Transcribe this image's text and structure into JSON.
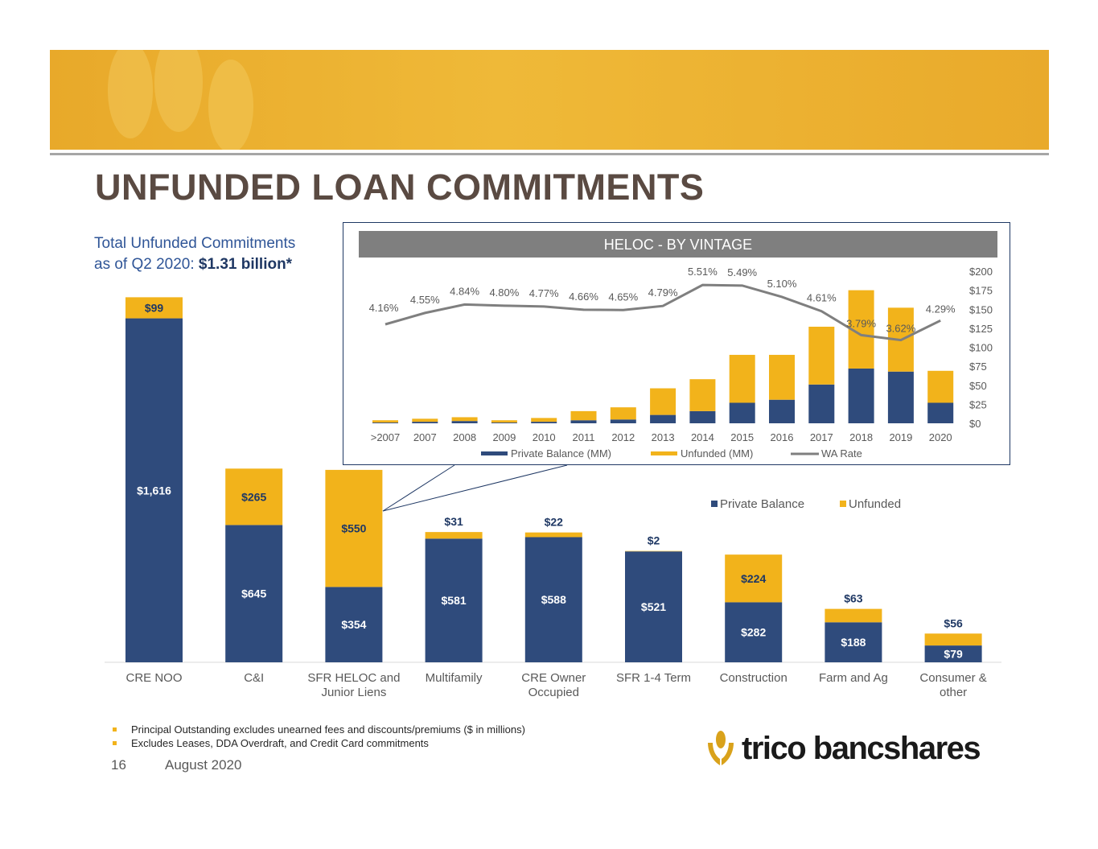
{
  "page": {
    "title": "UNFUNDED LOAN COMMITMENTS",
    "subtitle_line1": "Total Unfunded Commitments",
    "subtitle_line2_prefix": "as of Q2 2020: ",
    "subtitle_line2_value": "$1.31 billion*",
    "page_number": "16",
    "date": "August 2020",
    "logo_text": "trico bancshares",
    "footnotes": [
      "Principal Outstanding excludes unearned fees and discounts/premiums ($ in millions)",
      "Excludes Leases, DDA Overdraft, and Credit Card commitments"
    ]
  },
  "colors": {
    "navy": "#2f4b7c",
    "gold": "#f2b31b",
    "gray_line": "#7f7f7f",
    "banner": "#eab22f"
  },
  "chart_data": [
    {
      "type": "bar",
      "stacked": true,
      "categories": [
        "CRE NOO",
        "C&I",
        "SFR HELOC and Junior Liens",
        "Multifamily",
        "CRE Owner Occupied",
        "SFR 1-4 Term",
        "Construction",
        "Farm and Ag",
        "Consumer & other"
      ],
      "series": [
        {
          "name": "Private Balance",
          "values": [
            1616,
            645,
            354,
            581,
            588,
            521,
            282,
            188,
            79
          ],
          "labels": [
            "$1,616",
            "$645",
            "$354",
            "$581",
            "$588",
            "$521",
            "$282",
            "$188",
            "$79"
          ]
        },
        {
          "name": "Unfunded",
          "values": [
            99,
            265,
            550,
            31,
            22,
            2,
            224,
            63,
            56
          ],
          "labels": [
            "$99",
            "$265",
            "$550",
            "$31",
            "$22",
            "$2",
            "$224",
            "$63",
            "$56"
          ]
        }
      ],
      "legend": "right",
      "ylim": [
        0,
        1750
      ]
    },
    {
      "type": "bar",
      "stacked": true,
      "title": "HELOC - BY VINTAGE",
      "categories": [
        ">2007",
        "2007",
        "2008",
        "2009",
        "2010",
        "2011",
        "2012",
        "2013",
        "2014",
        "2015",
        "2016",
        "2017",
        "2018",
        "2019",
        "2020"
      ],
      "series": [
        {
          "name": "Private Balance (MM)",
          "values": [
            1,
            2,
            3,
            1,
            2,
            4,
            5,
            11,
            16,
            27,
            31,
            51,
            72,
            68,
            27
          ]
        },
        {
          "name": "Unfunded (MM)",
          "values": [
            3,
            4,
            5,
            3,
            5,
            12,
            16,
            35,
            42,
            63,
            59,
            76,
            103,
            84,
            42
          ]
        }
      ],
      "line_series": {
        "name": "WA Rate",
        "values": [
          4.16,
          4.55,
          4.84,
          4.8,
          4.77,
          4.66,
          4.65,
          4.79,
          5.51,
          5.49,
          5.1,
          4.61,
          3.79,
          3.62,
          4.29
        ],
        "labels": [
          "4.16%",
          "4.55%",
          "4.84%",
          "4.80%",
          "4.77%",
          "4.66%",
          "4.65%",
          "4.79%",
          "5.51%",
          "5.49%",
          "5.10%",
          "4.61%",
          "3.79%",
          "3.62%",
          "4.29%"
        ]
      },
      "y_ticks": [
        "$0",
        "$25",
        "$50",
        "$75",
        "$100",
        "$125",
        "$150",
        "$175",
        "$200"
      ],
      "ylim": [
        0,
        200
      ],
      "legend": "bottom"
    }
  ]
}
